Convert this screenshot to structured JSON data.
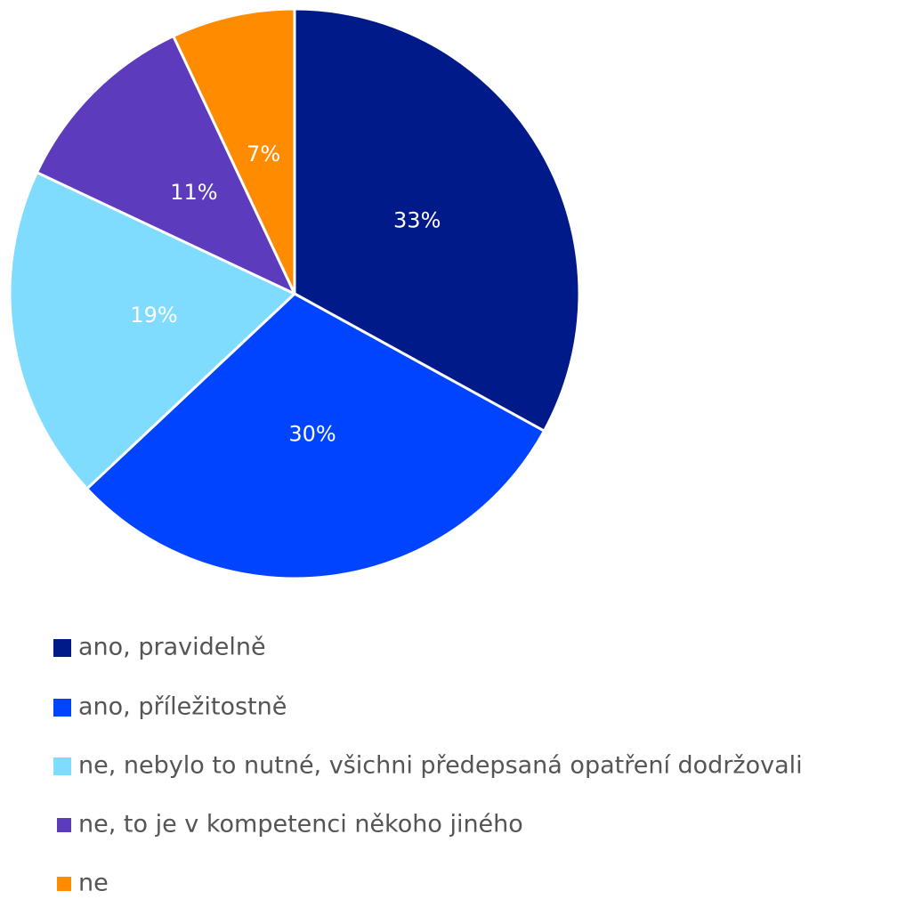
{
  "chart_data": {
    "type": "pie",
    "categories": [
      "ano, pravidelně",
      "ano, příležitostně",
      "ne, nebylo to nutné, všichni předepsaná opatření dodržovali",
      "ne, to je v kompetenci někoho jiného",
      "ne"
    ],
    "values": [
      33,
      30,
      19,
      11,
      7
    ],
    "value_labels": [
      "33%",
      "30%",
      "19%",
      "11%",
      "7%"
    ],
    "colors": [
      "#001a8a",
      "#0044ff",
      "#80dcff",
      "#5c3cbc",
      "#ff8c00"
    ],
    "legend": "bottom"
  }
}
